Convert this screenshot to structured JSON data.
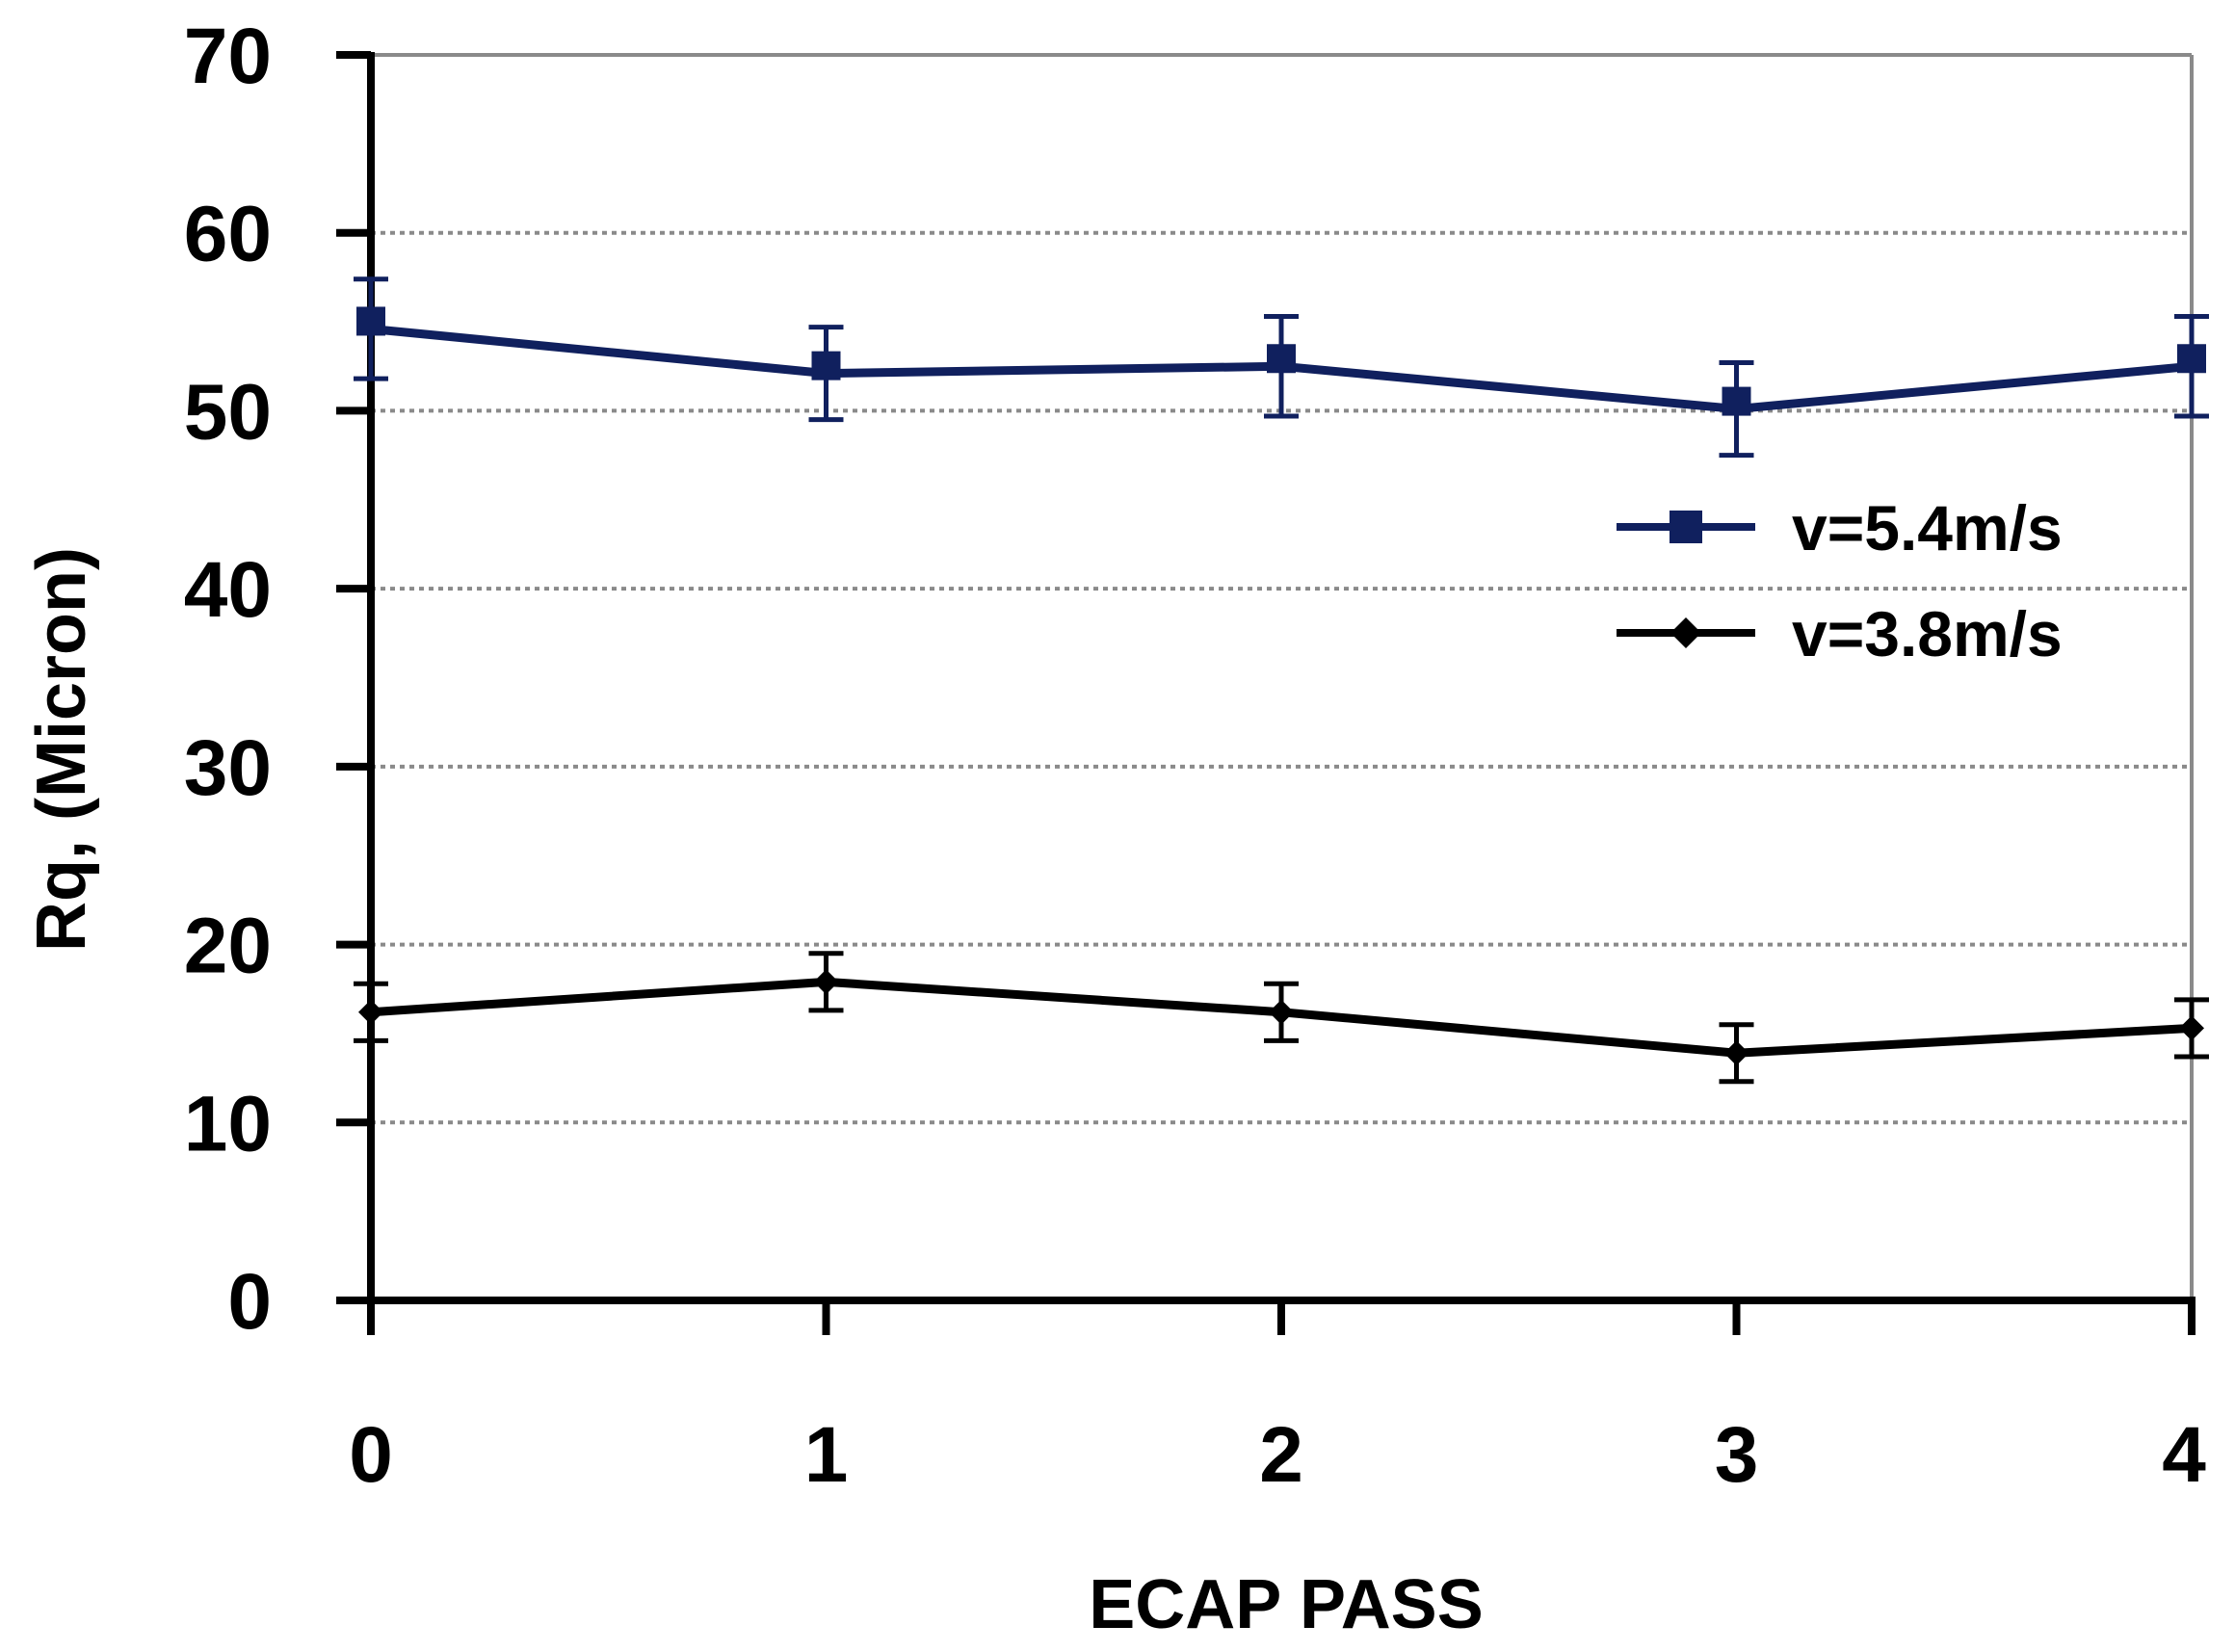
{
  "chart_data": {
    "type": "line",
    "title": "",
    "xlabel": "ECAP PASS",
    "ylabel": "Rq, (Micron)",
    "x": [
      0,
      1,
      2,
      3,
      4
    ],
    "x_tick_labels": [
      "0",
      "1",
      "2",
      "3",
      "4"
    ],
    "xlim": [
      0,
      4
    ],
    "y_tick_values": [
      0,
      10,
      20,
      30,
      40,
      50,
      60,
      70
    ],
    "y_tick_labels": [
      "0",
      "10",
      "20",
      "30",
      "40",
      "50",
      "60",
      "70"
    ],
    "ylim": [
      0,
      70
    ],
    "grid": "horizontal-dotted",
    "legend_position": "right",
    "series": [
      {
        "name": "v=5.4m/s",
        "color": "#10205e",
        "marker": "square",
        "values": [
          54.6,
          52.1,
          52.5,
          50.1,
          52.5
        ],
        "error": [
          2.8,
          2.6,
          2.8,
          2.6,
          2.8
        ]
      },
      {
        "name": "v=3.8m/s",
        "color": "#000000",
        "marker": "diamond",
        "values": [
          16.2,
          17.9,
          16.2,
          13.9,
          15.3
        ],
        "error": [
          1.6,
          1.6,
          1.6,
          1.6,
          1.6
        ]
      }
    ]
  }
}
